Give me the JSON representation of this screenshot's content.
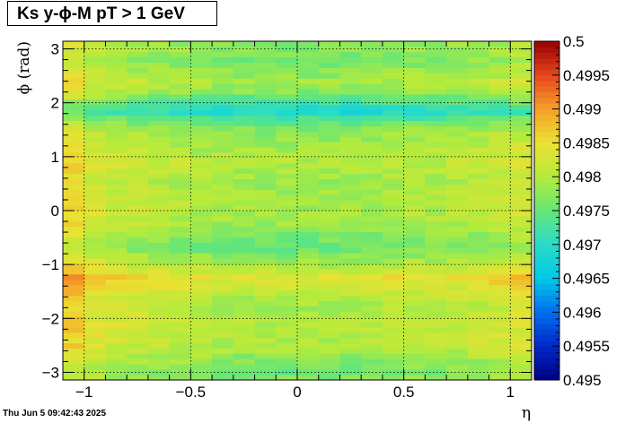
{
  "title": "Ks y-ϕ-M pT > 1 GeV",
  "timestamp": "Thu Jun  5 09:42:43 2025",
  "chart_data": {
    "type": "heatmap",
    "title": "Ks y-ϕ-M pT > 1 GeV",
    "xlabel": "η",
    "ylabel": "ϕ (rad)",
    "xlim": [
      -1.1,
      1.1
    ],
    "ylim": [
      -3.14159,
      3.14159
    ],
    "zlim": [
      0.495,
      0.5
    ],
    "grid": true,
    "x_ticks": [
      -1,
      -0.5,
      0,
      0.5,
      1
    ],
    "x_tick_labels": [
      "−1",
      "−0.5",
      "0",
      "0.5",
      "1"
    ],
    "y_ticks": [
      -3,
      -2,
      -1,
      0,
      1,
      2,
      3
    ],
    "y_tick_labels": [
      "−3",
      "−2",
      "−1",
      "0",
      "1",
      "2",
      "3"
    ],
    "z_ticks": [
      0.495,
      0.4955,
      0.496,
      0.4965,
      0.497,
      0.4975,
      0.498,
      0.4985,
      0.499,
      0.4995,
      0.5
    ],
    "z_tick_labels": [
      "0.495",
      "0.4955",
      "0.496",
      "0.4965",
      "0.497",
      "0.4975",
      "0.498",
      "0.4985",
      "0.499",
      "0.4995",
      "0.5"
    ],
    "x_bins": 22,
    "y_bins": 64,
    "phi_profile": [
      [
        -3.14,
        0.4977
      ],
      [
        -3.0,
        0.4975
      ],
      [
        -2.8,
        0.4977
      ],
      [
        -2.6,
        0.4979
      ],
      [
        -2.3,
        0.498
      ],
      [
        -2.0,
        0.498
      ],
      [
        -1.8,
        0.4979
      ],
      [
        -1.6,
        0.498
      ],
      [
        -1.4,
        0.4982
      ],
      [
        -1.25,
        0.4984
      ],
      [
        -1.1,
        0.4981
      ],
      [
        -0.9,
        0.4978
      ],
      [
        -0.7,
        0.4975
      ],
      [
        -0.5,
        0.4976
      ],
      [
        -0.3,
        0.4978
      ],
      [
        -0.1,
        0.4979
      ],
      [
        0.1,
        0.4979
      ],
      [
        0.3,
        0.4979
      ],
      [
        0.5,
        0.4978
      ],
      [
        0.7,
        0.4979
      ],
      [
        0.9,
        0.498
      ],
      [
        1.1,
        0.4979
      ],
      [
        1.3,
        0.4978
      ],
      [
        1.5,
        0.4977
      ],
      [
        1.7,
        0.4973
      ],
      [
        1.85,
        0.4968
      ],
      [
        2.0,
        0.4972
      ],
      [
        2.2,
        0.4977
      ],
      [
        2.4,
        0.4979
      ],
      [
        2.6,
        0.4977
      ],
      [
        2.8,
        0.4976
      ],
      [
        3.0,
        0.4977
      ],
      [
        3.14,
        0.4977
      ]
    ],
    "eta_profile": [
      [
        -1.1,
        0.4986
      ],
      [
        -1.0,
        0.4983
      ],
      [
        -0.9,
        0.4981
      ],
      [
        -0.7,
        0.498
      ],
      [
        -0.5,
        0.4979
      ],
      [
        -0.3,
        0.4978
      ],
      [
        0.0,
        0.4978
      ],
      [
        0.3,
        0.4978
      ],
      [
        0.5,
        0.4979
      ],
      [
        0.7,
        0.4979
      ],
      [
        0.9,
        0.498
      ],
      [
        1.0,
        0.4981
      ],
      [
        1.1,
        0.4982
      ]
    ]
  }
}
